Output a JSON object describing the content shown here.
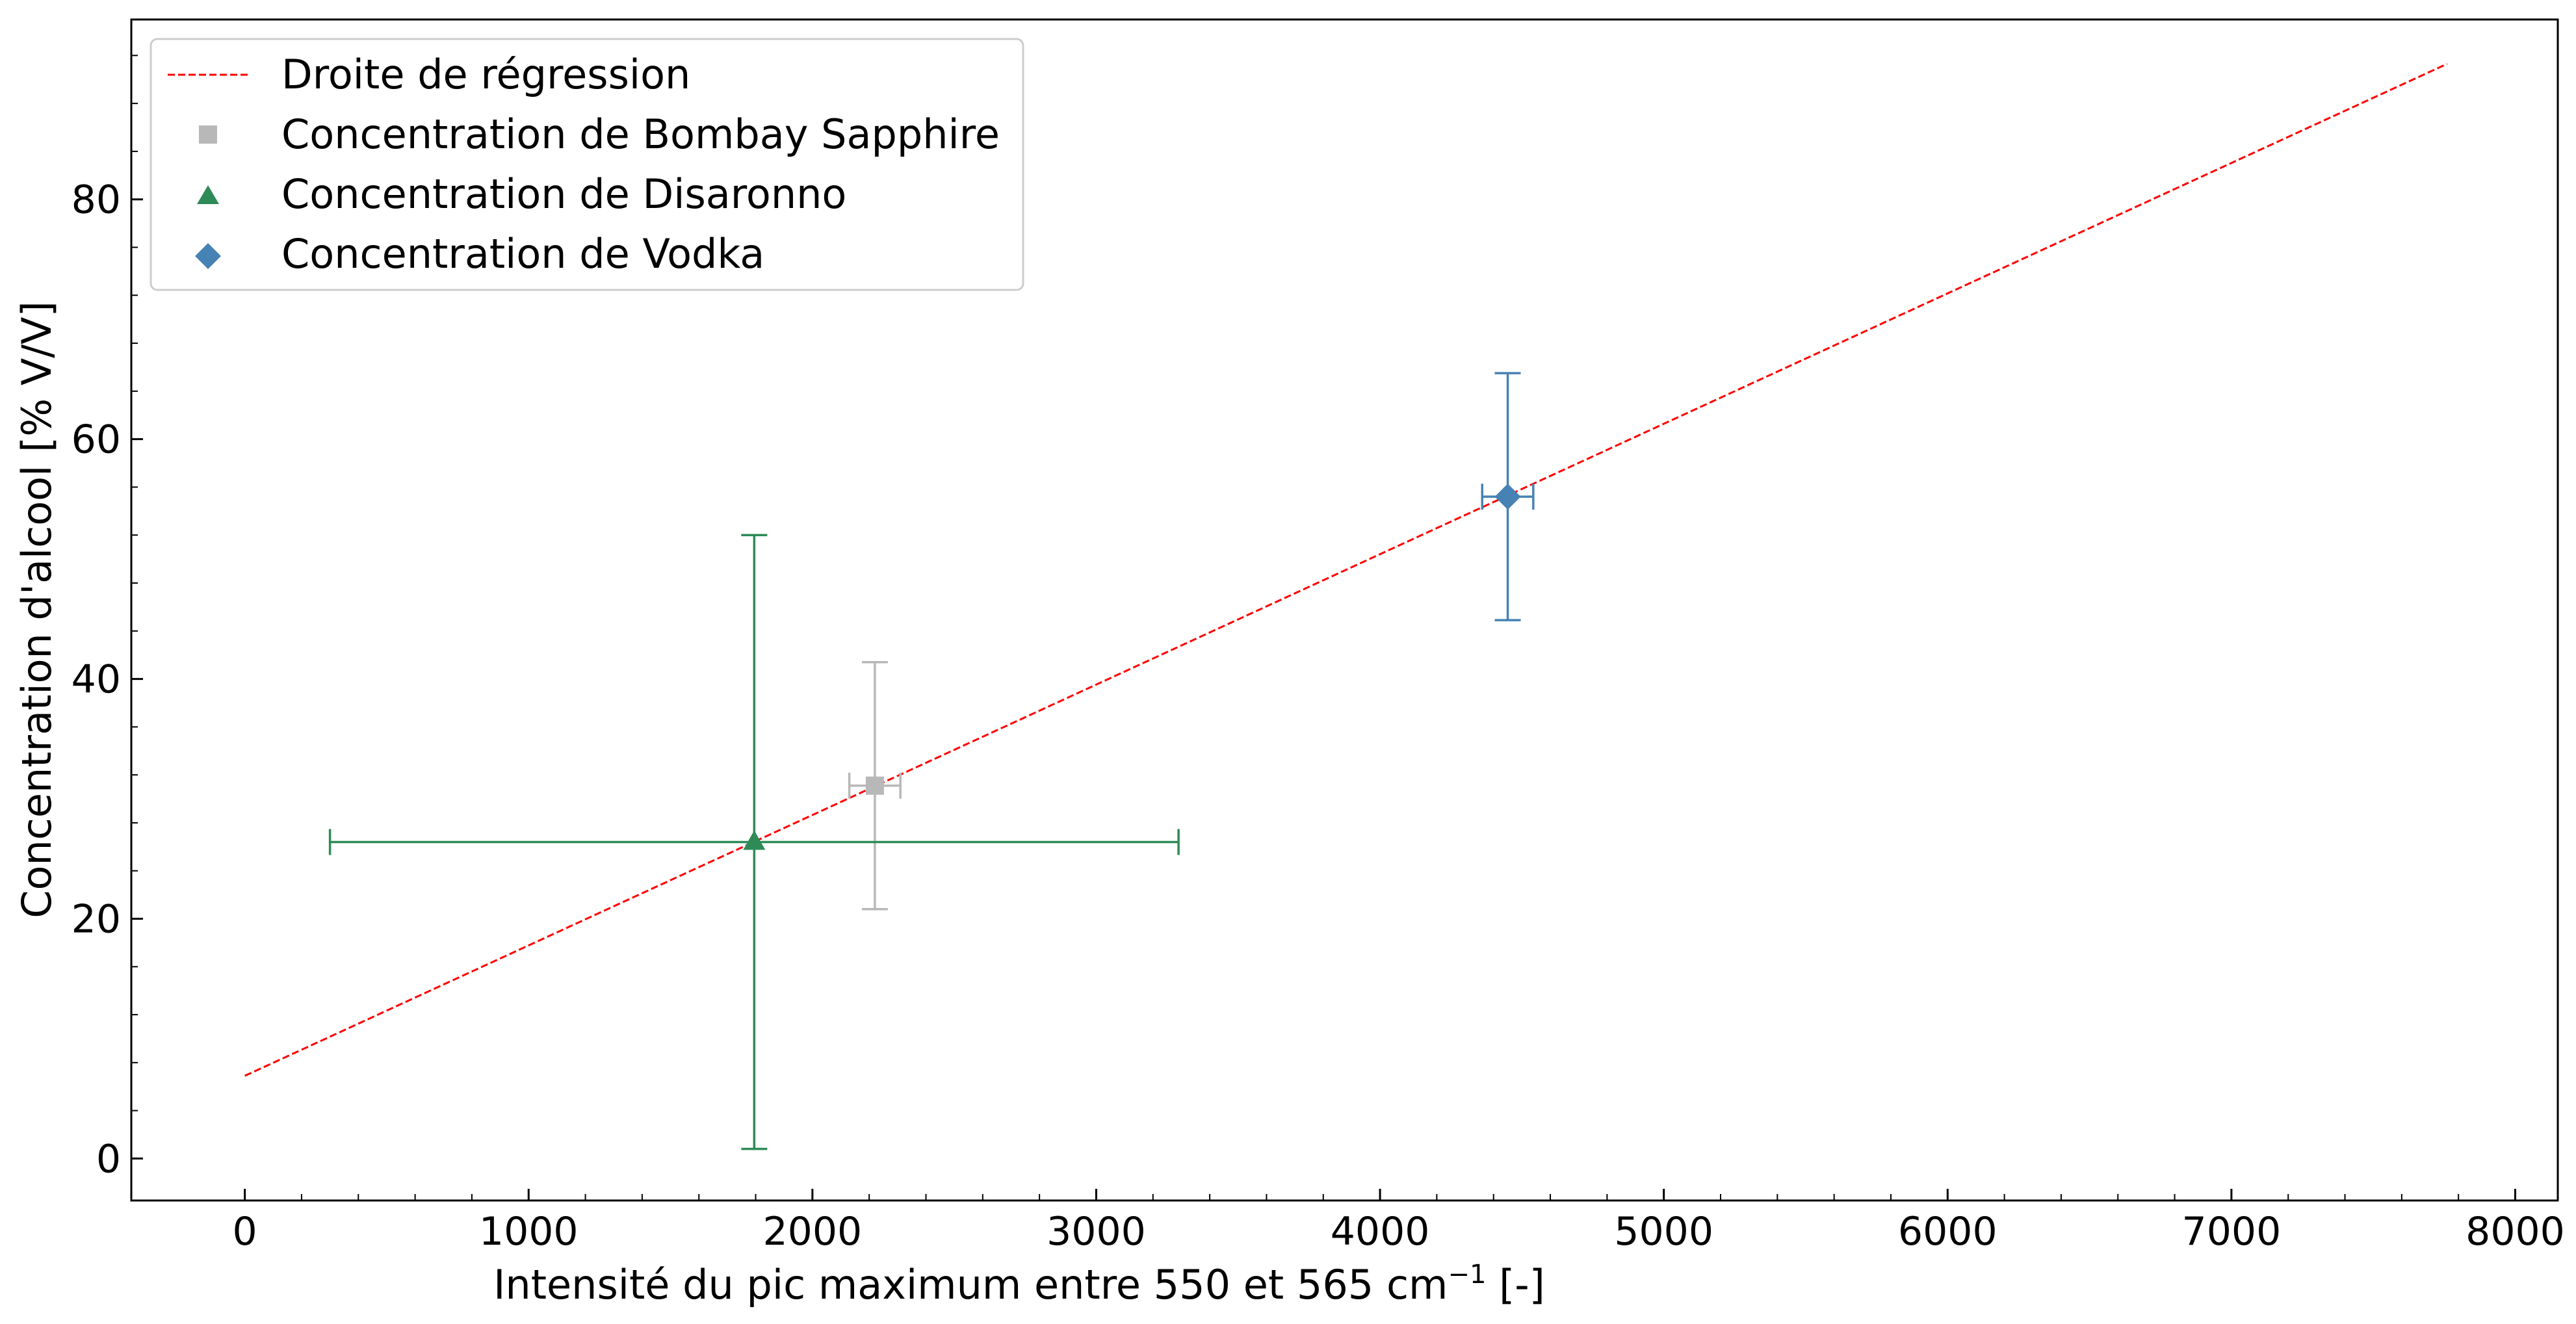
{
  "chart_data": {
    "type": "scatter",
    "title": "",
    "xlabel_main": "Intensité du pic maximum entre 550 et 565 cm",
    "xlabel_sup": "−1",
    "xlabel_tail": " [-]",
    "ylabel": "Concentration d'alcool [% V/V]",
    "xlim": [
      -400,
      8150
    ],
    "ylim": [
      -3.5,
      95
    ],
    "xticks": [
      0,
      1000,
      2000,
      3000,
      4000,
      5000,
      6000,
      7000,
      8000
    ],
    "xtick_labels": [
      "0",
      "1000",
      "2000",
      "3000",
      "4000",
      "5000",
      "6000",
      "7000",
      "8000"
    ],
    "yticks": [
      0,
      20,
      40,
      60,
      80
    ],
    "ytick_labels": [
      "0",
      "20",
      "40",
      "60",
      "80"
    ],
    "grid": false,
    "legend_position": "top-left",
    "regression": {
      "name": "Droite de régression",
      "x": [
        0,
        7760
      ],
      "y": [
        6.9,
        91.3
      ],
      "color": "#ff0000",
      "style": "dashed"
    },
    "series": [
      {
        "name": "Concentration de Bombay Sapphire",
        "marker": "square",
        "color": "#b8b8b8",
        "x": 2220,
        "y": 31.1,
        "xerr": 90,
        "yerr": 10.3
      },
      {
        "name": "Concentration de Disaronno",
        "marker": "triangle",
        "color": "#2e8b57",
        "x": 1795,
        "y": 26.4,
        "xerr": 1495,
        "yerr": 25.6
      },
      {
        "name": "Concentration de Vodka",
        "marker": "diamond",
        "color": "#4682b4",
        "x": 4450,
        "y": 55.2,
        "xerr": 90,
        "yerr": 10.3
      }
    ]
  }
}
